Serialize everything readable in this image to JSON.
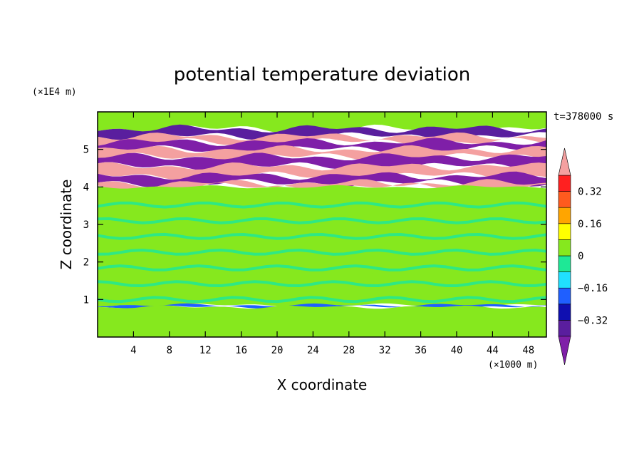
{
  "chart_data": {
    "type": "heatmap",
    "title": "potential temperature deviation",
    "xlabel": "X coordinate",
    "ylabel": "Z coordinate",
    "x_unit": "(×1000 m)",
    "y_unit": "(×1E4 m)",
    "time_label": "t=378000 s",
    "xlim": [
      0,
      50
    ],
    "ylim": [
      0,
      6
    ],
    "x_ticks": [
      "4",
      "8",
      "12",
      "16",
      "20",
      "24",
      "28",
      "32",
      "36",
      "40",
      "44",
      "48"
    ],
    "x_tick_values": [
      4,
      8,
      12,
      16,
      20,
      24,
      28,
      32,
      36,
      40,
      44,
      48
    ],
    "y_ticks": [
      "1",
      "2",
      "3",
      "4",
      "5"
    ],
    "y_tick_values": [
      1,
      2,
      3,
      4,
      5
    ],
    "colorbar": {
      "tick_labels": [
        "0.32",
        "0.16",
        "0",
        "−0.16",
        "−0.32"
      ],
      "tick_values": [
        0.32,
        0.16,
        0,
        -0.16,
        -0.32
      ],
      "levels": [
        -0.4,
        -0.32,
        -0.24,
        -0.16,
        -0.08,
        0,
        0.08,
        0.16,
        0.24,
        0.32,
        0.4
      ],
      "colors": [
        "#7f1fa8",
        "#5a1e9e",
        "#0f0fb0",
        "#1f5fff",
        "#20e0ff",
        "#1ee896",
        "#86e81e",
        "#ffff00",
        "#ffa500",
        "#ff5a1e",
        "#ff2020",
        "#f4a0a0"
      ],
      "extend": "both"
    },
    "bands": [
      {
        "z": [
          5.55,
          6.0
        ],
        "value": 0.04
      },
      {
        "z": [
          5.35,
          5.55
        ],
        "value": -0.36
      },
      {
        "z": [
          5.2,
          5.35
        ],
        "value": 0.44
      },
      {
        "z": [
          5.0,
          5.2
        ],
        "value": -0.44
      },
      {
        "z": [
          4.8,
          5.0
        ],
        "value": 0.44
      },
      {
        "z": [
          4.55,
          4.8
        ],
        "value": -0.44
      },
      {
        "z": [
          4.3,
          4.55
        ],
        "value": 0.44
      },
      {
        "z": [
          4.1,
          4.3
        ],
        "value": -0.44
      },
      {
        "z": [
          4.0,
          4.1
        ],
        "value": 0.44
      },
      {
        "z": [
          0.85,
          4.0
        ],
        "value": 0.03
      },
      {
        "z": [
          0.8,
          0.85
        ],
        "value": -0.2
      },
      {
        "z": [
          0,
          0.8
        ],
        "value": 0.04
      }
    ]
  }
}
